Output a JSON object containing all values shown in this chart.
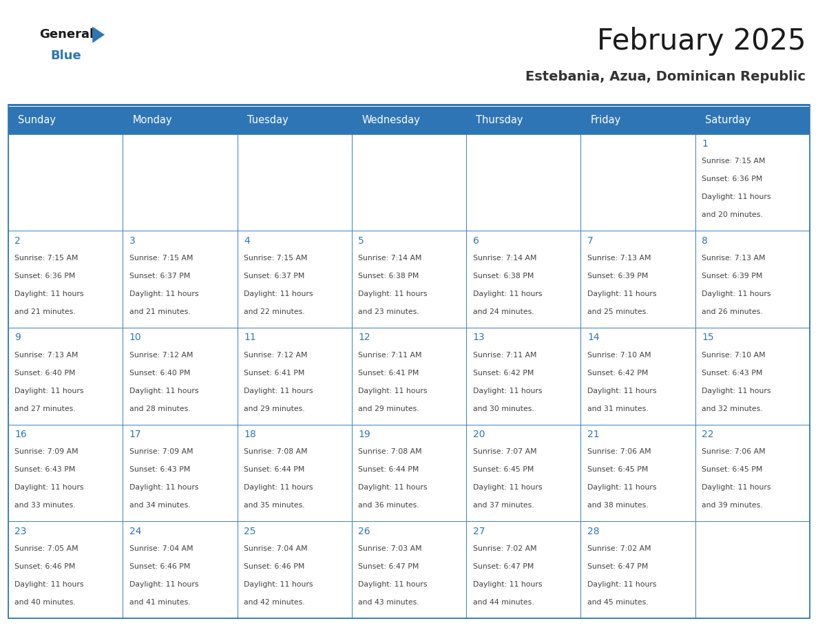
{
  "title": "February 2025",
  "subtitle": "Estebania, Azua, Dominican Republic",
  "header_bg": "#2E75B6",
  "header_text_color": "#FFFFFF",
  "cell_bg": "#FFFFFF",
  "day_number_color": "#2E75B6",
  "info_text_color": "#404040",
  "border_color": "#2E75B6",
  "days_of_week": [
    "Sunday",
    "Monday",
    "Tuesday",
    "Wednesday",
    "Thursday",
    "Friday",
    "Saturday"
  ],
  "weeks": [
    [
      null,
      null,
      null,
      null,
      null,
      null,
      1
    ],
    [
      2,
      3,
      4,
      5,
      6,
      7,
      8
    ],
    [
      9,
      10,
      11,
      12,
      13,
      14,
      15
    ],
    [
      16,
      17,
      18,
      19,
      20,
      21,
      22
    ],
    [
      23,
      24,
      25,
      26,
      27,
      28,
      null
    ]
  ],
  "cell_data": {
    "1": {
      "sunrise": "7:15 AM",
      "sunset": "6:36 PM",
      "daylight": "11 hours and 20 minutes"
    },
    "2": {
      "sunrise": "7:15 AM",
      "sunset": "6:36 PM",
      "daylight": "11 hours and 21 minutes"
    },
    "3": {
      "sunrise": "7:15 AM",
      "sunset": "6:37 PM",
      "daylight": "11 hours and 21 minutes"
    },
    "4": {
      "sunrise": "7:15 AM",
      "sunset": "6:37 PM",
      "daylight": "11 hours and 22 minutes"
    },
    "5": {
      "sunrise": "7:14 AM",
      "sunset": "6:38 PM",
      "daylight": "11 hours and 23 minutes"
    },
    "6": {
      "sunrise": "7:14 AM",
      "sunset": "6:38 PM",
      "daylight": "11 hours and 24 minutes"
    },
    "7": {
      "sunrise": "7:13 AM",
      "sunset": "6:39 PM",
      "daylight": "11 hours and 25 minutes"
    },
    "8": {
      "sunrise": "7:13 AM",
      "sunset": "6:39 PM",
      "daylight": "11 hours and 26 minutes"
    },
    "9": {
      "sunrise": "7:13 AM",
      "sunset": "6:40 PM",
      "daylight": "11 hours and 27 minutes"
    },
    "10": {
      "sunrise": "7:12 AM",
      "sunset": "6:40 PM",
      "daylight": "11 hours and 28 minutes"
    },
    "11": {
      "sunrise": "7:12 AM",
      "sunset": "6:41 PM",
      "daylight": "11 hours and 29 minutes"
    },
    "12": {
      "sunrise": "7:11 AM",
      "sunset": "6:41 PM",
      "daylight": "11 hours and 29 minutes"
    },
    "13": {
      "sunrise": "7:11 AM",
      "sunset": "6:42 PM",
      "daylight": "11 hours and 30 minutes"
    },
    "14": {
      "sunrise": "7:10 AM",
      "sunset": "6:42 PM",
      "daylight": "11 hours and 31 minutes"
    },
    "15": {
      "sunrise": "7:10 AM",
      "sunset": "6:43 PM",
      "daylight": "11 hours and 32 minutes"
    },
    "16": {
      "sunrise": "7:09 AM",
      "sunset": "6:43 PM",
      "daylight": "11 hours and 33 minutes"
    },
    "17": {
      "sunrise": "7:09 AM",
      "sunset": "6:43 PM",
      "daylight": "11 hours and 34 minutes"
    },
    "18": {
      "sunrise": "7:08 AM",
      "sunset": "6:44 PM",
      "daylight": "11 hours and 35 minutes"
    },
    "19": {
      "sunrise": "7:08 AM",
      "sunset": "6:44 PM",
      "daylight": "11 hours and 36 minutes"
    },
    "20": {
      "sunrise": "7:07 AM",
      "sunset": "6:45 PM",
      "daylight": "11 hours and 37 minutes"
    },
    "21": {
      "sunrise": "7:06 AM",
      "sunset": "6:45 PM",
      "daylight": "11 hours and 38 minutes"
    },
    "22": {
      "sunrise": "7:06 AM",
      "sunset": "6:45 PM",
      "daylight": "11 hours and 39 minutes"
    },
    "23": {
      "sunrise": "7:05 AM",
      "sunset": "6:46 PM",
      "daylight": "11 hours and 40 minutes"
    },
    "24": {
      "sunrise": "7:04 AM",
      "sunset": "6:46 PM",
      "daylight": "11 hours and 41 minutes"
    },
    "25": {
      "sunrise": "7:04 AM",
      "sunset": "6:46 PM",
      "daylight": "11 hours and 42 minutes"
    },
    "26": {
      "sunrise": "7:03 AM",
      "sunset": "6:47 PM",
      "daylight": "11 hours and 43 minutes"
    },
    "27": {
      "sunrise": "7:02 AM",
      "sunset": "6:47 PM",
      "daylight": "11 hours and 44 minutes"
    },
    "28": {
      "sunrise": "7:02 AM",
      "sunset": "6:47 PM",
      "daylight": "11 hours and 45 minutes"
    }
  },
  "logo_general_color": "#1a1a1a",
  "logo_blue_color": "#2E75B6",
  "fig_width": 11.88,
  "fig_height": 9.18
}
